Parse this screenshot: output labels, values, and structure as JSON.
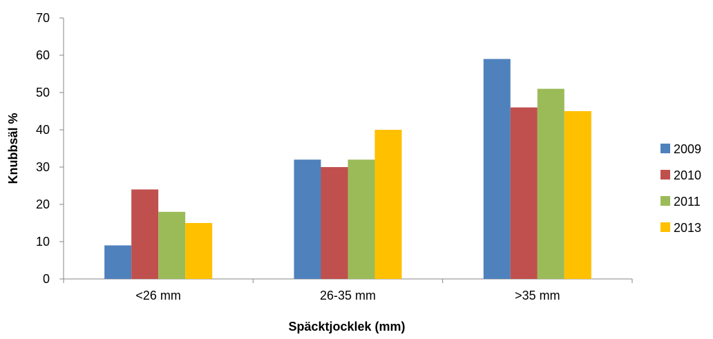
{
  "chart_data": {
    "type": "bar",
    "xlabel": "Späcktjocklek (mm)",
    "ylabel": "Knubbsäl %",
    "categories": [
      "<26 mm",
      "26-35 mm",
      ">35 mm"
    ],
    "series": [
      {
        "name": "2009",
        "color": "#4F81BD",
        "values": [
          9,
          32,
          59
        ]
      },
      {
        "name": "2010",
        "color": "#C0504D",
        "values": [
          24,
          30,
          46
        ]
      },
      {
        "name": "2011",
        "color": "#9BBB59",
        "values": [
          18,
          32,
          51
        ]
      },
      {
        "name": "2013",
        "color": "#FFC000",
        "values": [
          15,
          40,
          45
        ]
      }
    ],
    "ylim": [
      0,
      70
    ],
    "yticks": [
      0,
      10,
      20,
      30,
      40,
      50,
      60,
      70
    ],
    "grid": false,
    "legend": "right"
  }
}
